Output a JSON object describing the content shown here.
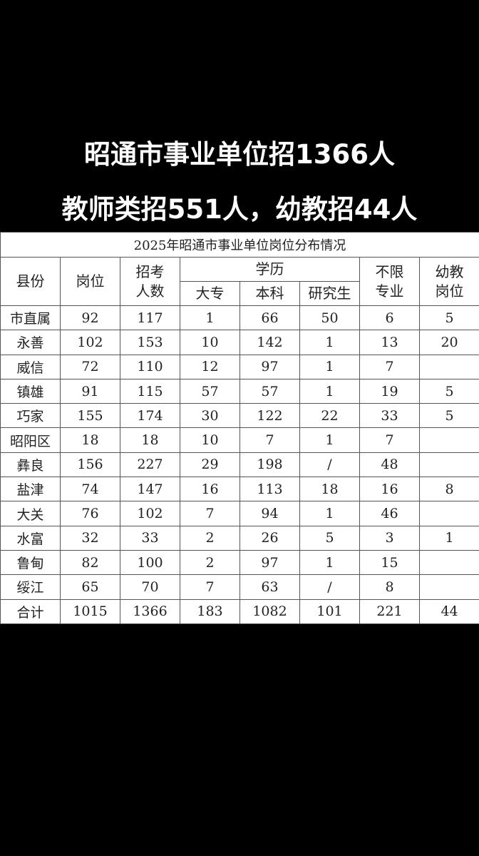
{
  "headline": {
    "line1": "昭通市事业单位招1366人",
    "line2": "教师类招551人，幼教招44人"
  },
  "table": {
    "title": "2025年昭通市事业单位岗位分布情况",
    "headers": {
      "county": "县份",
      "posts": "岗位",
      "recruits": "招考人数",
      "education": "学历",
      "college": "大专",
      "bachelor": "本科",
      "graduate": "研究生",
      "unrestricted": "不限专业",
      "preschool": "幼教岗位"
    },
    "rows": [
      [
        "市直属",
        "92",
        "117",
        "1",
        "66",
        "50",
        "6",
        "5"
      ],
      [
        "永善",
        "102",
        "153",
        "10",
        "142",
        "1",
        "13",
        "20"
      ],
      [
        "威信",
        "72",
        "110",
        "12",
        "97",
        "1",
        "7",
        ""
      ],
      [
        "镇雄",
        "91",
        "115",
        "57",
        "57",
        "1",
        "19",
        "5"
      ],
      [
        "巧家",
        "155",
        "174",
        "30",
        "122",
        "22",
        "33",
        "5"
      ],
      [
        "昭阳区",
        "18",
        "18",
        "10",
        "7",
        "1",
        "7",
        ""
      ],
      [
        "彝良",
        "156",
        "227",
        "29",
        "198",
        "/",
        "48",
        ""
      ],
      [
        "盐津",
        "74",
        "147",
        "16",
        "113",
        "18",
        "16",
        "8"
      ],
      [
        "大关",
        "76",
        "102",
        "7",
        "94",
        "1",
        "46",
        ""
      ],
      [
        "水富",
        "32",
        "33",
        "2",
        "26",
        "5",
        "3",
        "1"
      ],
      [
        "鲁甸",
        "82",
        "100",
        "2",
        "97",
        "1",
        "15",
        ""
      ],
      [
        "绥江",
        "65",
        "70",
        "7",
        "63",
        "/",
        "8",
        ""
      ],
      [
        "合计",
        "1015",
        "1366",
        "183",
        "1082",
        "101",
        "221",
        "44"
      ]
    ]
  }
}
